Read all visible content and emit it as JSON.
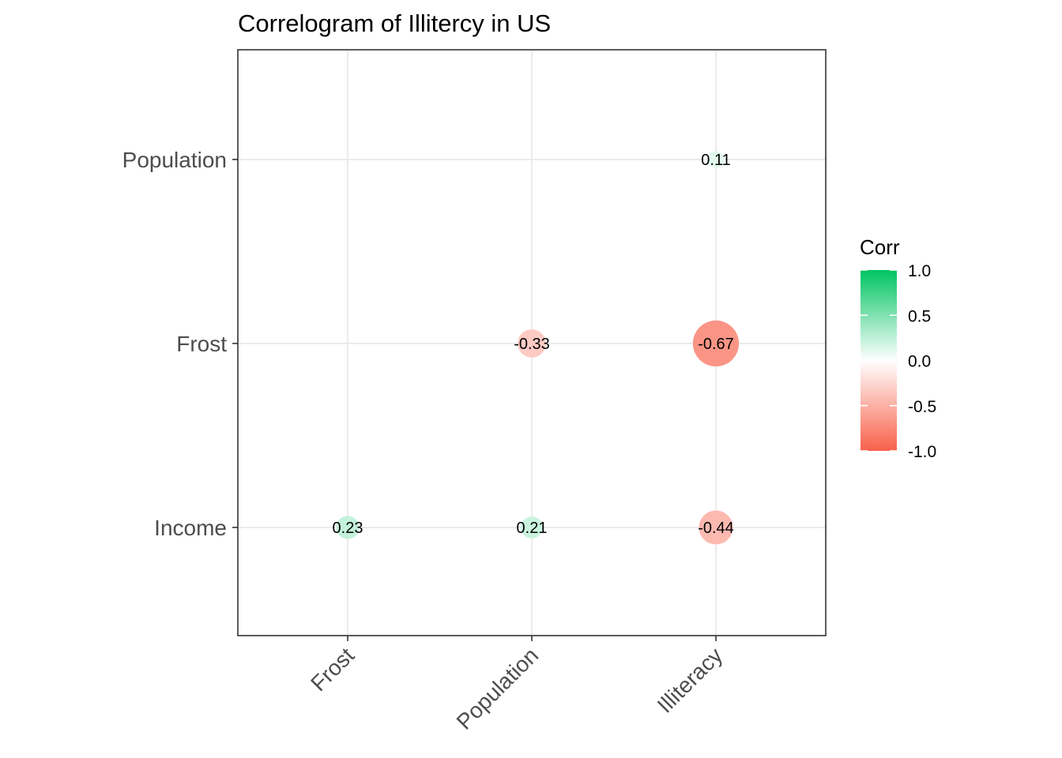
{
  "chart_data": {
    "type": "scatter",
    "subtype": "correlogram",
    "title": "Correlogram of Illitercy in US",
    "x_categories": [
      "Frost",
      "Population",
      "Illiteracy"
    ],
    "y_categories": [
      "Income",
      "Frost",
      "Population"
    ],
    "cells": [
      {
        "x": "Illiteracy",
        "y": "Population",
        "value": 0.11,
        "label": "0.11"
      },
      {
        "x": "Population",
        "y": "Frost",
        "value": -0.33,
        "label": "-0.33"
      },
      {
        "x": "Illiteracy",
        "y": "Frost",
        "value": -0.67,
        "label": "-0.67"
      },
      {
        "x": "Frost",
        "y": "Income",
        "value": 0.23,
        "label": "0.23"
      },
      {
        "x": "Population",
        "y": "Income",
        "value": 0.21,
        "label": "0.21"
      },
      {
        "x": "Illiteracy",
        "y": "Income",
        "value": -0.44,
        "label": "-0.44"
      }
    ],
    "legend": {
      "title": "Corr",
      "range": [
        -1.0,
        1.0
      ],
      "ticks": [
        1.0,
        0.5,
        0.0,
        -0.5,
        -1.0
      ],
      "tick_labels": [
        "1.0",
        "0.5",
        "0.0",
        "-0.5",
        "-1.0"
      ],
      "colors": {
        "high": "#00C462",
        "mid": "#FFFFFF",
        "low": "#F8614B"
      },
      "placement": "right"
    },
    "grid": true,
    "x_tick_rotation": "45 degrees"
  }
}
